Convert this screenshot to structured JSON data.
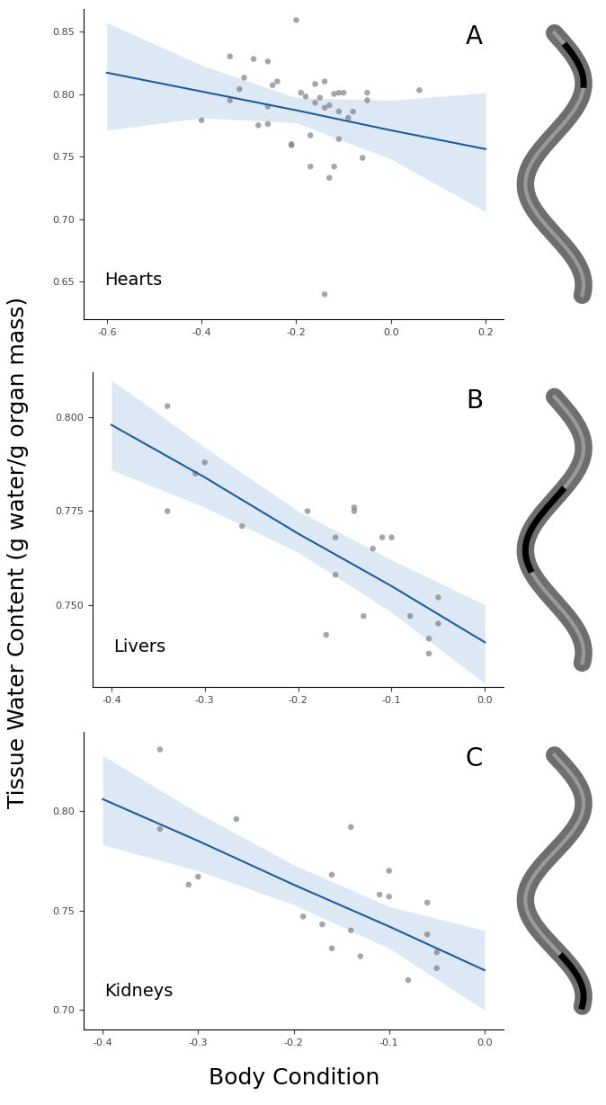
{
  "xlabel": "Body Condition",
  "ylabel": "Tissue Water Content (g water/g organ mass)",
  "chart_data": [
    {
      "type": "scatter",
      "title": "Hearts",
      "annotations": [
        "A"
      ],
      "color": "#808080",
      "x": [
        -0.4,
        -0.34,
        -0.34,
        -0.32,
        -0.31,
        -0.29,
        -0.28,
        -0.26,
        -0.26,
        -0.26,
        -0.25,
        -0.24,
        -0.2,
        -0.21,
        -0.21,
        -0.19,
        -0.18,
        -0.17,
        -0.17,
        -0.16,
        -0.16,
        -0.15,
        -0.14,
        -0.14,
        -0.14,
        -0.13,
        -0.13,
        -0.12,
        -0.12,
        -0.11,
        -0.11,
        -0.11,
        -0.1,
        -0.09,
        -0.08,
        -0.06,
        -0.05,
        -0.05,
        0.06
      ],
      "values": [
        0.779,
        0.83,
        0.795,
        0.804,
        0.813,
        0.828,
        0.775,
        0.826,
        0.79,
        0.776,
        0.807,
        0.81,
        0.859,
        0.76,
        0.759,
        0.801,
        0.798,
        0.742,
        0.767,
        0.808,
        0.793,
        0.797,
        0.81,
        0.64,
        0.789,
        0.733,
        0.791,
        0.742,
        0.8,
        0.801,
        0.764,
        0.786,
        0.801,
        0.781,
        0.786,
        0.749,
        0.801,
        0.795,
        0.803
      ],
      "fit": {
        "x": [
          -0.6,
          -0.4,
          -0.2,
          0.0,
          0.2
        ],
        "values": [
          0.817,
          0.802,
          0.787,
          0.771,
          0.756
        ],
        "lower": [
          0.771,
          0.781,
          0.777,
          0.748,
          0.706
        ],
        "upper": [
          0.857,
          0.823,
          0.797,
          0.795,
          0.801
        ]
      },
      "xlim": [
        -0.649,
        0.238
      ],
      "xticks": [
        -0.6,
        -0.4,
        -0.2,
        0.0,
        0.2
      ],
      "ylim": [
        0.62,
        0.868
      ],
      "yticks": [
        0.65,
        {
          "value": 0.7,
          "label": "0.70"
        },
        0.75,
        {
          "value": 0.8,
          "label": "0.80"
        },
        0.85
      ]
    },
    {
      "type": "scatter",
      "title": "Livers",
      "annotations": [
        "B"
      ],
      "color": "#808080",
      "x": [
        -0.34,
        -0.34,
        -0.31,
        -0.3,
        -0.26,
        -0.19,
        -0.16,
        -0.16,
        -0.17,
        -0.14,
        -0.14,
        -0.13,
        -0.12,
        -0.11,
        -0.1,
        -0.08,
        -0.06,
        -0.06,
        -0.05,
        -0.05
      ],
      "values": [
        0.803,
        0.775,
        0.785,
        0.788,
        0.771,
        0.775,
        0.768,
        0.758,
        0.742,
        0.776,
        0.775,
        0.747,
        0.765,
        0.768,
        0.768,
        0.747,
        0.737,
        0.741,
        0.752,
        0.745
      ],
      "fit": {
        "x": [
          -0.4,
          -0.3,
          -0.2,
          -0.1,
          0.0
        ],
        "values": [
          0.798,
          0.784,
          0.769,
          0.755,
          0.74
        ],
        "lower": [
          0.786,
          0.776,
          0.764,
          0.748,
          0.729
        ],
        "upper": [
          0.81,
          0.792,
          0.775,
          0.762,
          0.75
        ]
      },
      "xlim": [
        -0.42,
        0.02
      ],
      "xticks": [
        -0.4,
        -0.3,
        -0.2,
        -0.1,
        0.0
      ],
      "ylim": [
        0.728,
        0.812
      ],
      "yticks": [
        {
          "value": 0.75,
          "label": "0.750"
        },
        0.775,
        {
          "value": 0.8,
          "label": "0.800"
        }
      ]
    },
    {
      "type": "scatter",
      "title": "Kidneys",
      "annotations": [
        "C"
      ],
      "color": "#808080",
      "x": [
        -0.34,
        -0.34,
        -0.31,
        -0.3,
        -0.26,
        -0.19,
        -0.17,
        -0.16,
        -0.16,
        -0.14,
        -0.14,
        -0.13,
        -0.11,
        -0.1,
        -0.1,
        -0.08,
        -0.06,
        -0.06,
        -0.05,
        -0.05
      ],
      "values": [
        0.831,
        0.791,
        0.763,
        0.767,
        0.796,
        0.747,
        0.743,
        0.768,
        0.731,
        0.792,
        0.74,
        0.727,
        0.758,
        0.757,
        0.77,
        0.715,
        0.754,
        0.738,
        0.729,
        0.721
      ],
      "fit": {
        "x": [
          -0.4,
          -0.3,
          -0.2,
          -0.1,
          0.0
        ],
        "values": [
          0.806,
          0.785,
          0.763,
          0.742,
          0.72
        ],
        "lower": [
          0.783,
          0.77,
          0.753,
          0.731,
          0.7
        ],
        "upper": [
          0.828,
          0.799,
          0.773,
          0.752,
          0.74
        ]
      },
      "xlim": [
        -0.42,
        0.02
      ],
      "xticks": [
        -0.4,
        -0.3,
        -0.2,
        -0.1,
        0.0
      ],
      "ylim": [
        0.69,
        0.84
      ],
      "yticks": [
        {
          "value": 0.7,
          "label": "0.70"
        },
        {
          "value": 0.75,
          "label": "0.75"
        },
        {
          "value": 0.8,
          "label": "0.80"
        }
      ]
    }
  ]
}
